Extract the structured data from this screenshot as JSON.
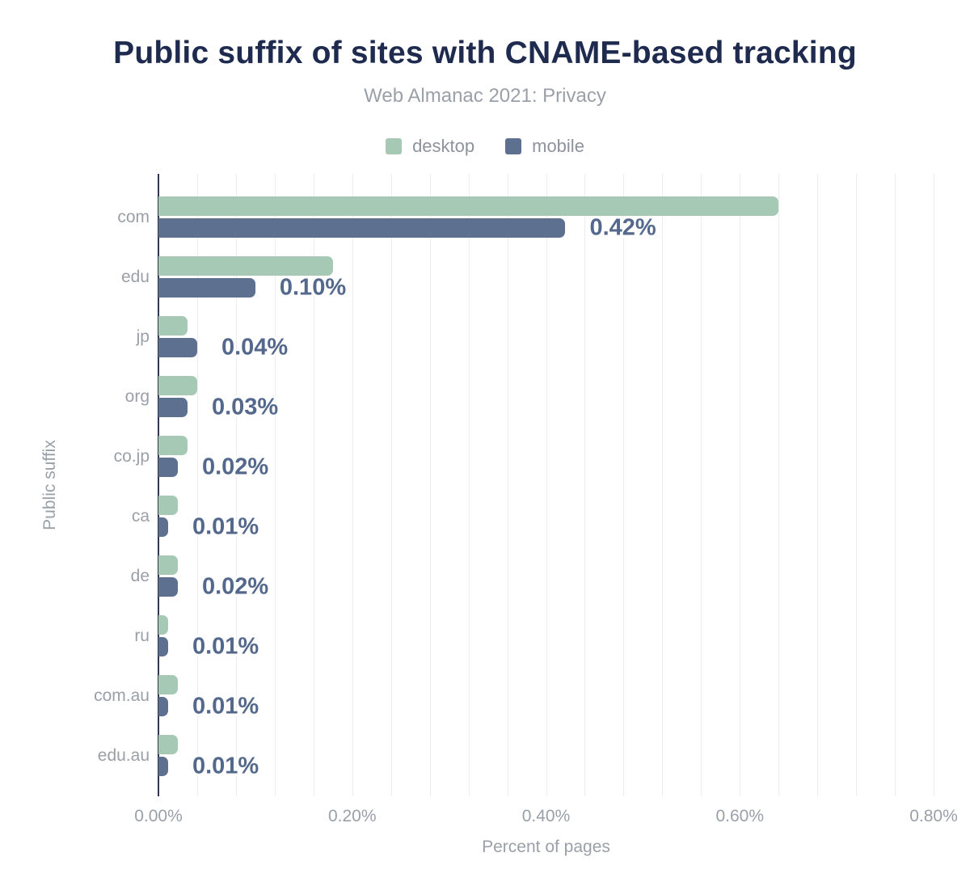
{
  "chart_data": {
    "type": "bar",
    "orientation": "horizontal",
    "title": "Public suffix of sites with CNAME-based tracking",
    "subtitle": "Web Almanac 2021: Privacy",
    "xlabel": "Percent of pages",
    "ylabel": "Public suffix",
    "xlim": [
      0,
      0.8
    ],
    "x_unit": "%",
    "x_ticks": [
      "0.00%",
      "0.20%",
      "0.40%",
      "0.60%",
      "0.80%"
    ],
    "x_tick_values": [
      0.0,
      0.2,
      0.4,
      0.6,
      0.8
    ],
    "x_minor_gridline_step": 0.04,
    "grid": "vertical-minor-on",
    "legend_position": "top-center",
    "categories": [
      "com",
      "edu",
      "jp",
      "org",
      "co.jp",
      "ca",
      "de",
      "ru",
      "com.au",
      "edu.au"
    ],
    "series": [
      {
        "name": "desktop",
        "color": "#a5c9b4",
        "values": [
          0.64,
          0.18,
          0.03,
          0.04,
          0.03,
          0.02,
          0.02,
          0.01,
          0.02,
          0.02
        ],
        "note": "values estimated from bar lengths; no data labels shown for this series"
      },
      {
        "name": "mobile",
        "color": "#5e708f",
        "values": [
          0.42,
          0.1,
          0.04,
          0.03,
          0.02,
          0.01,
          0.02,
          0.01,
          0.01,
          0.01
        ],
        "data_labels": [
          "0.42%",
          "0.10%",
          "0.04%",
          "0.03%",
          "0.02%",
          "0.01%",
          "0.02%",
          "0.01%",
          "0.01%",
          "0.01%"
        ]
      }
    ]
  },
  "colors": {
    "title": "#1e2b4e",
    "muted_text": "#9aa0a8",
    "legend_text": "#8d939c",
    "value_label": "#54688c",
    "axis_line": "#2e3950",
    "gridline": "#ededf0",
    "background": "#ffffff",
    "desktop_bar": "#a5c9b4",
    "mobile_bar": "#5e708f"
  }
}
